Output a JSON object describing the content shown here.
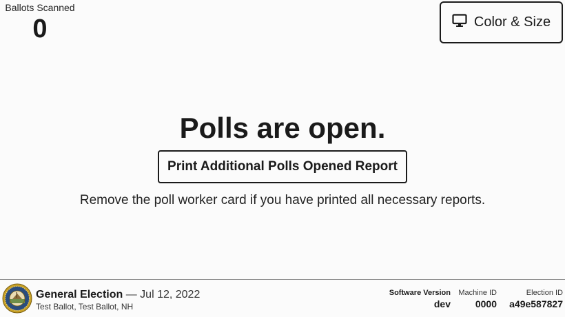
{
  "ballots_scanned": {
    "label": "Ballots Scanned",
    "count": "0"
  },
  "settings_button": {
    "label": "Color & Size",
    "icon": "monitor-icon"
  },
  "main": {
    "title": "Polls are open.",
    "report_button_label": "Print Additional Polls Opened Report",
    "instructions": "Remove the poll worker card if you have printed all necessary reports."
  },
  "footer": {
    "seal_icon": "state-seal-icon",
    "election_name": "General Election",
    "separator": "—",
    "election_date": "Jul 12, 2022",
    "ballot_info": "Test Ballot, Test Ballot, NH",
    "software_version_label": "Software Version",
    "software_version_value": "dev",
    "machine_id_label": "Machine ID",
    "machine_id_value": "0000",
    "election_id_label": "Election ID",
    "election_id_value": "a49e587827"
  },
  "colors": {
    "background": "#fbfbfb",
    "text": "#1a1a1a",
    "seal_gold": "#c9a227",
    "seal_blue": "#2a4c7d"
  }
}
